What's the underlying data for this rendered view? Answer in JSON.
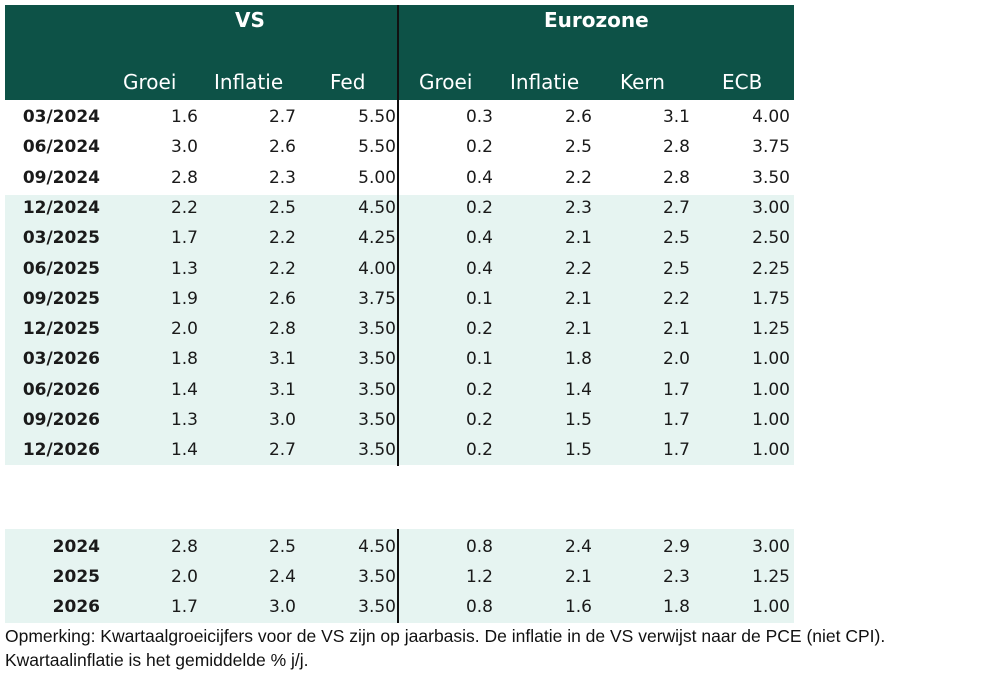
{
  "header": {
    "groups": [
      "VS",
      "Eurozone"
    ],
    "columns": [
      "Groei",
      "Inflatie",
      "Fed",
      "Groei",
      "Inflatie",
      "Kern",
      "ECB"
    ]
  },
  "quarterly_rows": [
    {
      "label": "03/2024",
      "values": [
        "1.6",
        "2.7",
        "5.50",
        "0.3",
        "2.6",
        "3.1",
        "4.00"
      ]
    },
    {
      "label": "06/2024",
      "values": [
        "3.0",
        "2.6",
        "5.50",
        "0.2",
        "2.5",
        "2.8",
        "3.75"
      ]
    },
    {
      "label": "09/2024",
      "values": [
        "2.8",
        "2.3",
        "5.00",
        "0.4",
        "2.2",
        "2.8",
        "3.50"
      ]
    },
    {
      "label": "12/2024",
      "values": [
        "2.2",
        "2.5",
        "4.50",
        "0.2",
        "2.3",
        "2.7",
        "3.00"
      ]
    },
    {
      "label": "03/2025",
      "values": [
        "1.7",
        "2.2",
        "4.25",
        "0.4",
        "2.1",
        "2.5",
        "2.50"
      ]
    },
    {
      "label": "06/2025",
      "values": [
        "1.3",
        "2.2",
        "4.00",
        "0.4",
        "2.2",
        "2.5",
        "2.25"
      ]
    },
    {
      "label": "09/2025",
      "values": [
        "1.9",
        "2.6",
        "3.75",
        "0.1",
        "2.1",
        "2.2",
        "1.75"
      ]
    },
    {
      "label": "12/2025",
      "values": [
        "2.0",
        "2.8",
        "3.50",
        "0.2",
        "2.1",
        "2.1",
        "1.25"
      ]
    },
    {
      "label": "03/2026",
      "values": [
        "1.8",
        "3.1",
        "3.50",
        "0.1",
        "1.8",
        "2.0",
        "1.00"
      ]
    },
    {
      "label": "06/2026",
      "values": [
        "1.4",
        "3.1",
        "3.50",
        "0.2",
        "1.4",
        "1.7",
        "1.00"
      ]
    },
    {
      "label": "09/2026",
      "values": [
        "1.3",
        "3.0",
        "3.50",
        "0.2",
        "1.5",
        "1.7",
        "1.00"
      ]
    },
    {
      "label": "12/2026",
      "values": [
        "1.4",
        "2.7",
        "3.50",
        "0.2",
        "1.5",
        "1.7",
        "1.00"
      ]
    }
  ],
  "annual_rows": [
    {
      "label": "2024",
      "values": [
        "2.8",
        "2.5",
        "4.50",
        "0.8",
        "2.4",
        "2.9",
        "3.00"
      ]
    },
    {
      "label": "2025",
      "values": [
        "2.0",
        "2.4",
        "3.50",
        "1.2",
        "2.1",
        "2.3",
        "1.25"
      ]
    },
    {
      "label": "2026",
      "values": [
        "1.7",
        "3.0",
        "3.50",
        "0.8",
        "1.6",
        "1.8",
        "1.00"
      ]
    }
  ],
  "note": "Opmerking: Kwartaalgroeicijfers voor de VS zijn op jaarbasis. De inflatie in de VS verwijst naar de PCE (niet CPI). Kwartaalinflatie is het gemiddelde % j/j.",
  "colors": {
    "header_bg": "#0d5247",
    "band_bg": "#e6f4f1",
    "header_text": "#ffffff"
  }
}
